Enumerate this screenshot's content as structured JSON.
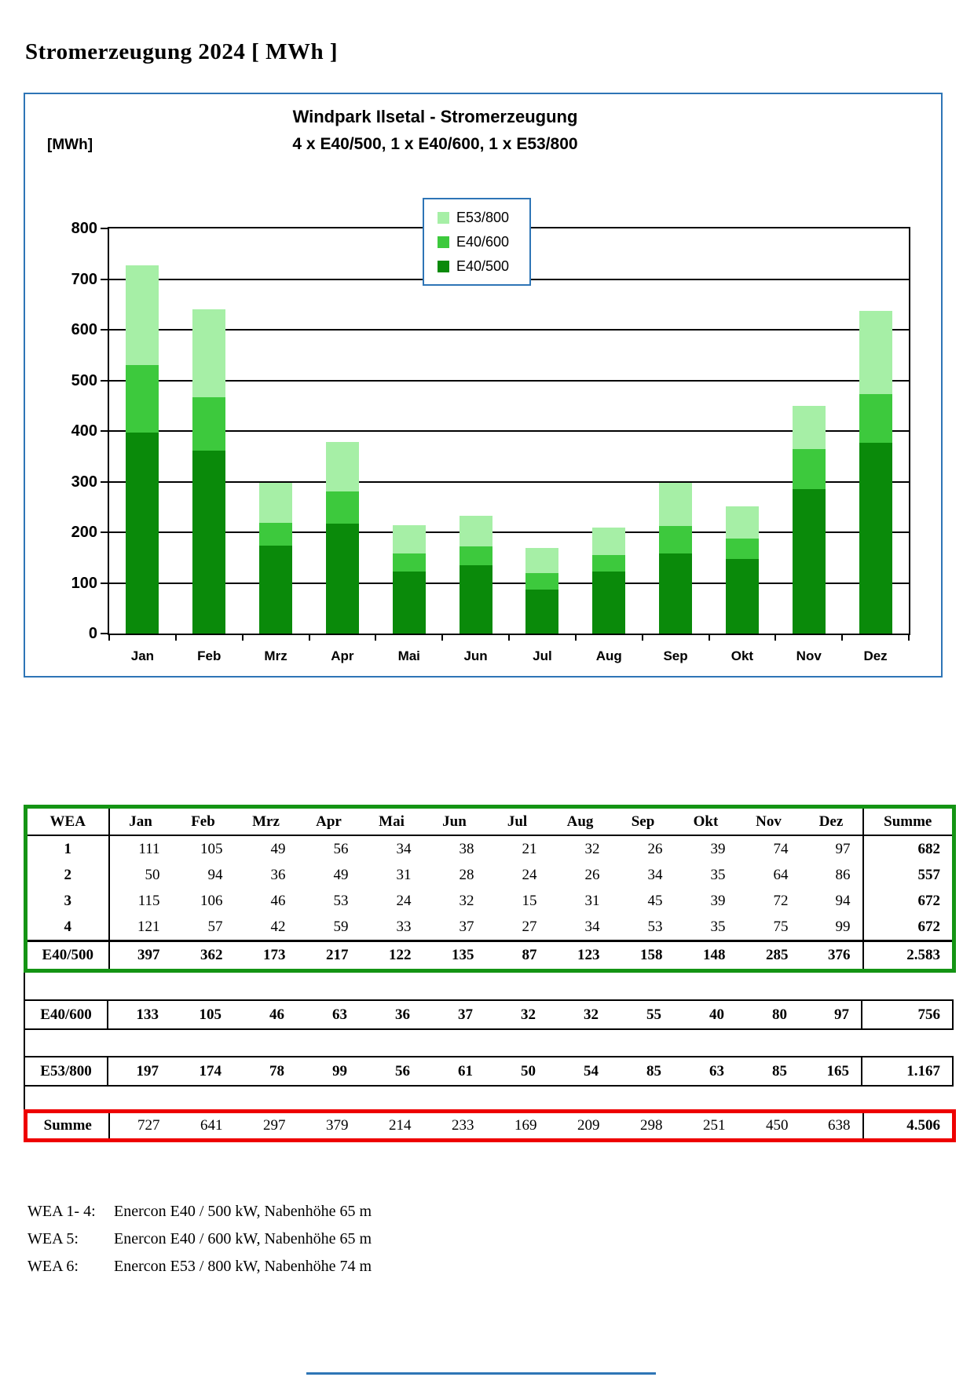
{
  "page_title": "Stromerzeugung 2024 [ MWh ]",
  "chart_data": {
    "type": "bar",
    "stacked": true,
    "title": "Windpark Ilsetal  - Stromerzeugung",
    "subtitle": "4 x E40/500,  1 x E40/600, 1 x E53/800",
    "ylabel": "[MWh]",
    "ylim": [
      0,
      800
    ],
    "ytick_step": 100,
    "grid": true,
    "legend_position": "upper-center",
    "legend_order": [
      "E53/800",
      "E40/600",
      "E40/500"
    ],
    "categories": [
      "Jan",
      "Feb",
      "Mrz",
      "Apr",
      "Mai",
      "Jun",
      "Jul",
      "Aug",
      "Sep",
      "Okt",
      "Nov",
      "Dez"
    ],
    "series": [
      {
        "name": "E40/500",
        "color": "#0A8A0A",
        "values": [
          397,
          362,
          173,
          217,
          122,
          135,
          87,
          123,
          158,
          148,
          285,
          376
        ]
      },
      {
        "name": "E40/600",
        "color": "#3DC93D",
        "values": [
          133,
          105,
          46,
          63,
          36,
          37,
          32,
          32,
          55,
          40,
          80,
          97
        ]
      },
      {
        "name": "E53/800",
        "color": "#A6EFA6",
        "values": [
          197,
          174,
          78,
          99,
          56,
          61,
          50,
          54,
          85,
          63,
          85,
          165
        ]
      }
    ]
  },
  "tables": {
    "months": [
      "Jan",
      "Feb",
      "Mrz",
      "Apr",
      "Mai",
      "Jun",
      "Jul",
      "Aug",
      "Sep",
      "Okt",
      "Nov",
      "Dez"
    ],
    "main": {
      "corner_label": "WEA",
      "sum_label": "Summe",
      "rows": [
        {
          "label": "1",
          "values": [
            111,
            105,
            49,
            56,
            34,
            38,
            21,
            32,
            26,
            39,
            74,
            97
          ],
          "sum": "682"
        },
        {
          "label": "2",
          "values": [
            50,
            94,
            36,
            49,
            31,
            28,
            24,
            26,
            34,
            35,
            64,
            86
          ],
          "sum": "557"
        },
        {
          "label": "3",
          "values": [
            115,
            106,
            46,
            53,
            24,
            32,
            15,
            31,
            45,
            39,
            72,
            94
          ],
          "sum": "672"
        },
        {
          "label": "4",
          "values": [
            121,
            57,
            42,
            59,
            33,
            37,
            27,
            34,
            53,
            35,
            75,
            99
          ],
          "sum": "672"
        }
      ],
      "total": {
        "label": "E40/500",
        "values": [
          397,
          362,
          173,
          217,
          122,
          135,
          87,
          123,
          158,
          148,
          285,
          376
        ],
        "sum": "2.583"
      }
    },
    "blocks": [
      {
        "style": "black",
        "label": "E40/600",
        "values": [
          133,
          105,
          46,
          63,
          36,
          37,
          32,
          32,
          55,
          40,
          80,
          97
        ],
        "sum": "756"
      },
      {
        "style": "black",
        "label": "E53/800",
        "values": [
          197,
          174,
          78,
          99,
          56,
          61,
          50,
          54,
          85,
          63,
          85,
          165
        ],
        "sum": "1.167"
      },
      {
        "style": "red",
        "label": "Summe",
        "values": [
          727,
          641,
          297,
          379,
          214,
          233,
          169,
          209,
          298,
          251,
          450,
          638
        ],
        "sum": "4.506"
      }
    ]
  },
  "footnotes": [
    {
      "label": "WEA 1- 4:",
      "text": "Enercon E40 / 500 kW, Nabenhöhe 65 m"
    },
    {
      "label": "WEA 5:",
      "text": "Enercon E40 / 600 kW, Nabenhöhe 65 m"
    },
    {
      "label": "WEA 6:",
      "text": "Enercon E53 / 800 kW, Nabenhöhe 74 m"
    }
  ],
  "colors": {
    "frame_blue": "#2E75B6",
    "table_green": "#149414",
    "summe_red": "#EE0000",
    "axis_black": "#000000"
  }
}
